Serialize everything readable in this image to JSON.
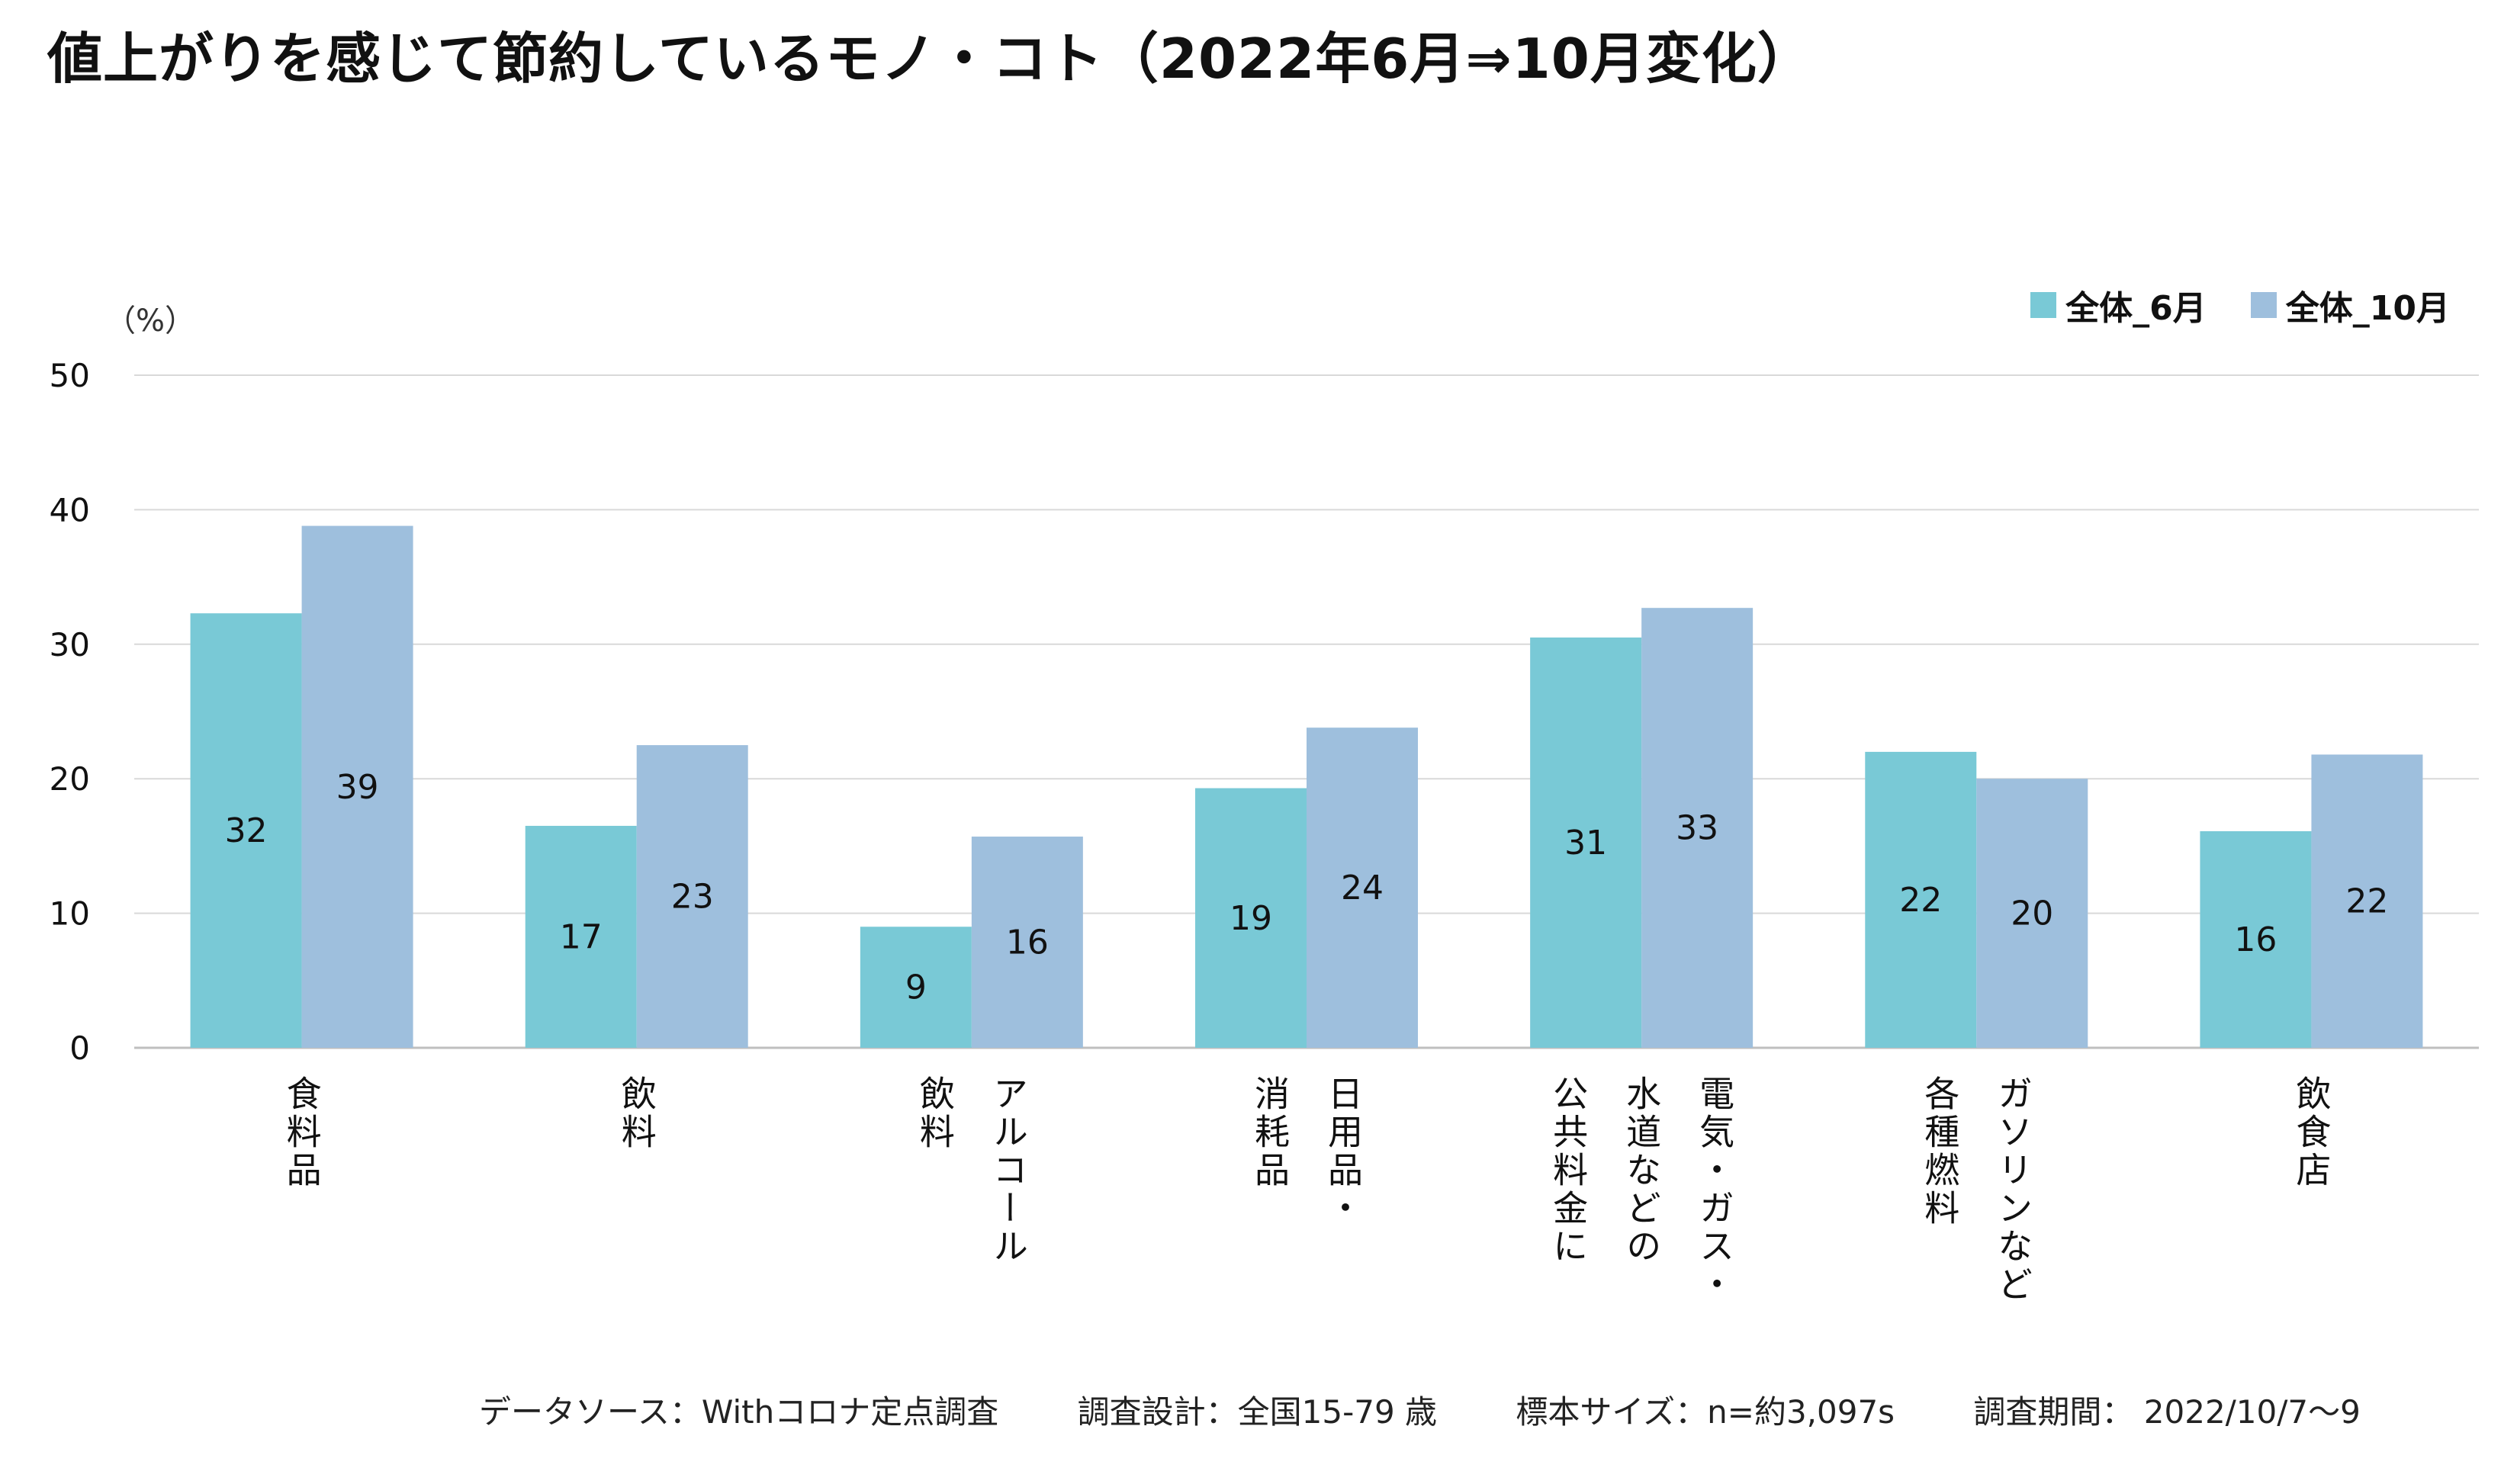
{
  "title": "値上がりを感じて節約しているモノ・コト（2022年6月⇒10月変化）",
  "unit_label": "（%）",
  "colors": {
    "june": "#79c9d6",
    "october": "#9ebfdd",
    "grid": "#d9d9d9",
    "axis": "#bfbfbf"
  },
  "chart_data": {
    "type": "bar",
    "title": "",
    "xlabel": "",
    "ylabel": "（%）",
    "ylim": [
      0,
      50
    ],
    "yticks": [
      "0",
      "10",
      "20",
      "30",
      "40",
      "50"
    ],
    "grid": true,
    "legend_position": "top-right",
    "categories": [
      [
        "食料品"
      ],
      [
        "飲料"
      ],
      [
        "アルコール",
        "飲料"
      ],
      [
        "日用品・",
        "消耗品"
      ],
      [
        "電気・ガス・",
        "水道などの",
        "公共料金に"
      ],
      [
        "ガソリンなど",
        "各種燃料"
      ],
      [
        "飲食店"
      ]
    ],
    "series": [
      {
        "name": "全体_6月",
        "values": [
          32.3,
          16.5,
          9.0,
          19.3,
          30.5,
          22.0,
          16.1
        ],
        "labels": [
          "32",
          "17",
          "9",
          "19",
          "31",
          "22",
          "16"
        ]
      },
      {
        "name": "全体_10月",
        "values": [
          38.8,
          22.5,
          15.7,
          23.8,
          32.7,
          20.0,
          21.8
        ],
        "labels": [
          "39",
          "23",
          "16",
          "24",
          "33",
          "20",
          "22"
        ]
      }
    ]
  },
  "footer": {
    "source": "データソース：Withコロナ定点調査",
    "design": "調査設計：全国15-79 歳",
    "sample": "標本サイズ：n=約3,097s",
    "period": "調査期間： 2022/10/7～9"
  }
}
